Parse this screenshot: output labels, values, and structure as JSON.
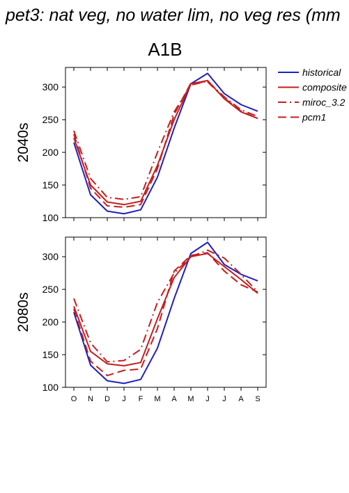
{
  "page_title": "pet3: nat veg, no water lim, no veg res (mm",
  "scenario_title": "A1B",
  "legend": {
    "items": [
      {
        "label": "historical",
        "color": "#1f1fbf",
        "dash": "solid"
      },
      {
        "label": "composite",
        "color": "#c41e1e",
        "dash": "solid"
      },
      {
        "label": "miroc_3.2",
        "color": "#c41e1e",
        "dash": "dashdot"
      },
      {
        "label": "pcm1",
        "color": "#c41e1e",
        "dash": "dash"
      }
    ]
  },
  "chart_data": [
    {
      "type": "line",
      "panel_label": "2040s",
      "x": [
        "O",
        "N",
        "D",
        "J",
        "F",
        "M",
        "A",
        "M",
        "J",
        "J",
        "A",
        "S"
      ],
      "ylim": [
        100,
        330
      ],
      "yticks": [
        100,
        150,
        200,
        250,
        300
      ],
      "show_x_tick_labels": false,
      "series": [
        {
          "name": "historical",
          "values": [
            215,
            135,
            110,
            106,
            112,
            162,
            237,
            305,
            321,
            290,
            273,
            263
          ]
        },
        {
          "name": "composite",
          "values": [
            222,
            150,
            124,
            120,
            125,
            180,
            250,
            305,
            310,
            282,
            262,
            252
          ]
        },
        {
          "name": "miroc_3.2",
          "values": [
            233,
            160,
            131,
            128,
            132,
            200,
            262,
            303,
            309,
            285,
            265,
            255
          ]
        },
        {
          "name": "pcm1",
          "values": [
            228,
            145,
            118,
            116,
            120,
            175,
            258,
            306,
            308,
            283,
            263,
            252
          ]
        }
      ]
    },
    {
      "type": "line",
      "panel_label": "2080s",
      "x": [
        "O",
        "N",
        "D",
        "J",
        "F",
        "M",
        "A",
        "M",
        "J",
        "J",
        "A",
        "S"
      ],
      "ylim": [
        100,
        330
      ],
      "yticks": [
        100,
        150,
        200,
        250,
        300
      ],
      "show_x_tick_labels": true,
      "series": [
        {
          "name": "historical",
          "values": [
            215,
            134,
            110,
            106,
            112,
            160,
            236,
            305,
            322,
            288,
            273,
            263
          ]
        },
        {
          "name": "composite",
          "values": [
            224,
            155,
            136,
            133,
            138,
            205,
            268,
            300,
            305,
            285,
            265,
            244
          ]
        },
        {
          "name": "miroc_3.2",
          "values": [
            236,
            168,
            139,
            141,
            158,
            230,
            275,
            300,
            310,
            298,
            273,
            246
          ]
        },
        {
          "name": "pcm1",
          "values": [
            220,
            140,
            118,
            126,
            128,
            190,
            278,
            302,
            306,
            278,
            257,
            246
          ]
        }
      ]
    }
  ]
}
